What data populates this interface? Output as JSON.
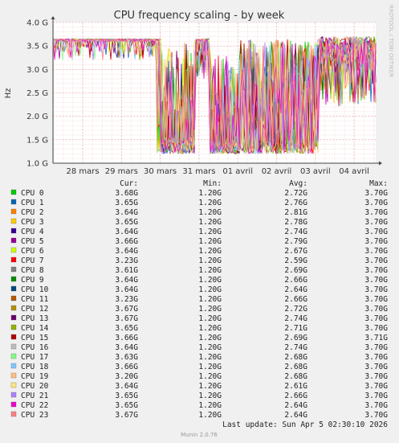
{
  "chart_data": {
    "type": "line",
    "title": "CPU frequency scaling - by week",
    "ylabel": "Hz",
    "side_label": "RRDTOOL / TOBI OETIKER",
    "y_ticks": [
      "1.0 G",
      "1.5 G",
      "2.0 G",
      "2.5 G",
      "3.0 G",
      "3.5 G",
      "4.0 G"
    ],
    "ylim": [
      1.0,
      4.0
    ],
    "x_ticks": [
      "28 mars",
      "29 mars",
      "30 mars",
      "31 mars",
      "01 avril",
      "02 avril",
      "03 avril",
      "04 avril"
    ],
    "columns": [
      "Cur:",
      "Min:",
      "Avg:",
      "Max:"
    ],
    "grid": true,
    "series": [
      {
        "name": "CPU 0",
        "color": "#00cc00",
        "cur": "3.68G",
        "min": "1.20G",
        "avg": "2.72G",
        "max": "3.70G"
      },
      {
        "name": "CPU 1",
        "color": "#0066b3",
        "cur": "3.65G",
        "min": "1.20G",
        "avg": "2.76G",
        "max": "3.70G"
      },
      {
        "name": "CPU 2",
        "color": "#ff8000",
        "cur": "3.64G",
        "min": "1.20G",
        "avg": "2.81G",
        "max": "3.70G"
      },
      {
        "name": "CPU 3",
        "color": "#ffcc00",
        "cur": "3.65G",
        "min": "1.20G",
        "avg": "2.78G",
        "max": "3.70G"
      },
      {
        "name": "CPU 4",
        "color": "#330099",
        "cur": "3.64G",
        "min": "1.20G",
        "avg": "2.74G",
        "max": "3.70G"
      },
      {
        "name": "CPU 5",
        "color": "#990099",
        "cur": "3.66G",
        "min": "1.20G",
        "avg": "2.79G",
        "max": "3.70G"
      },
      {
        "name": "CPU 6",
        "color": "#ccff00",
        "cur": "3.64G",
        "min": "1.20G",
        "avg": "2.67G",
        "max": "3.70G"
      },
      {
        "name": "CPU 7",
        "color": "#ff0000",
        "cur": "3.23G",
        "min": "1.20G",
        "avg": "2.59G",
        "max": "3.70G"
      },
      {
        "name": "CPU 8",
        "color": "#808080",
        "cur": "3.61G",
        "min": "1.20G",
        "avg": "2.69G",
        "max": "3.70G"
      },
      {
        "name": "CPU 9",
        "color": "#008f00",
        "cur": "3.64G",
        "min": "1.20G",
        "avg": "2.66G",
        "max": "3.70G"
      },
      {
        "name": "CPU 10",
        "color": "#00487d",
        "cur": "3.64G",
        "min": "1.20G",
        "avg": "2.64G",
        "max": "3.70G"
      },
      {
        "name": "CPU 11",
        "color": "#b35a00",
        "cur": "3.23G",
        "min": "1.20G",
        "avg": "2.66G",
        "max": "3.70G"
      },
      {
        "name": "CPU 12",
        "color": "#b38f00",
        "cur": "3.67G",
        "min": "1.20G",
        "avg": "2.72G",
        "max": "3.70G"
      },
      {
        "name": "CPU 13",
        "color": "#6b006b",
        "cur": "3.67G",
        "min": "1.20G",
        "avg": "2.74G",
        "max": "3.70G"
      },
      {
        "name": "CPU 14",
        "color": "#8fb300",
        "cur": "3.65G",
        "min": "1.20G",
        "avg": "2.71G",
        "max": "3.70G"
      },
      {
        "name": "CPU 15",
        "color": "#b30000",
        "cur": "3.66G",
        "min": "1.20G",
        "avg": "2.69G",
        "max": "3.71G"
      },
      {
        "name": "CPU 16",
        "color": "#bebebe",
        "cur": "3.64G",
        "min": "1.20G",
        "avg": "2.74G",
        "max": "3.70G"
      },
      {
        "name": "CPU 17",
        "color": "#80ff80",
        "cur": "3.63G",
        "min": "1.20G",
        "avg": "2.68G",
        "max": "3.70G"
      },
      {
        "name": "CPU 18",
        "color": "#80c9ff",
        "cur": "3.66G",
        "min": "1.20G",
        "avg": "2.68G",
        "max": "3.70G"
      },
      {
        "name": "CPU 19",
        "color": "#ffc080",
        "cur": "3.20G",
        "min": "1.20G",
        "avg": "2.68G",
        "max": "3.70G"
      },
      {
        "name": "CPU 20",
        "color": "#ffe680",
        "cur": "3.64G",
        "min": "1.20G",
        "avg": "2.61G",
        "max": "3.70G"
      },
      {
        "name": "CPU 21",
        "color": "#aa80ff",
        "cur": "3.65G",
        "min": "1.20G",
        "avg": "2.66G",
        "max": "3.70G"
      },
      {
        "name": "CPU 22",
        "color": "#ee00cc",
        "cur": "3.65G",
        "min": "1.20G",
        "avg": "2.64G",
        "max": "3.70G"
      },
      {
        "name": "CPU 23",
        "color": "#ff8080",
        "cur": "3.67G",
        "min": "1.20G",
        "avg": "2.64G",
        "max": "3.70G"
      }
    ],
    "last_update": "Last update: Sun Apr  5 02:30:10 2026",
    "footer": "Munin 2.0.76"
  }
}
